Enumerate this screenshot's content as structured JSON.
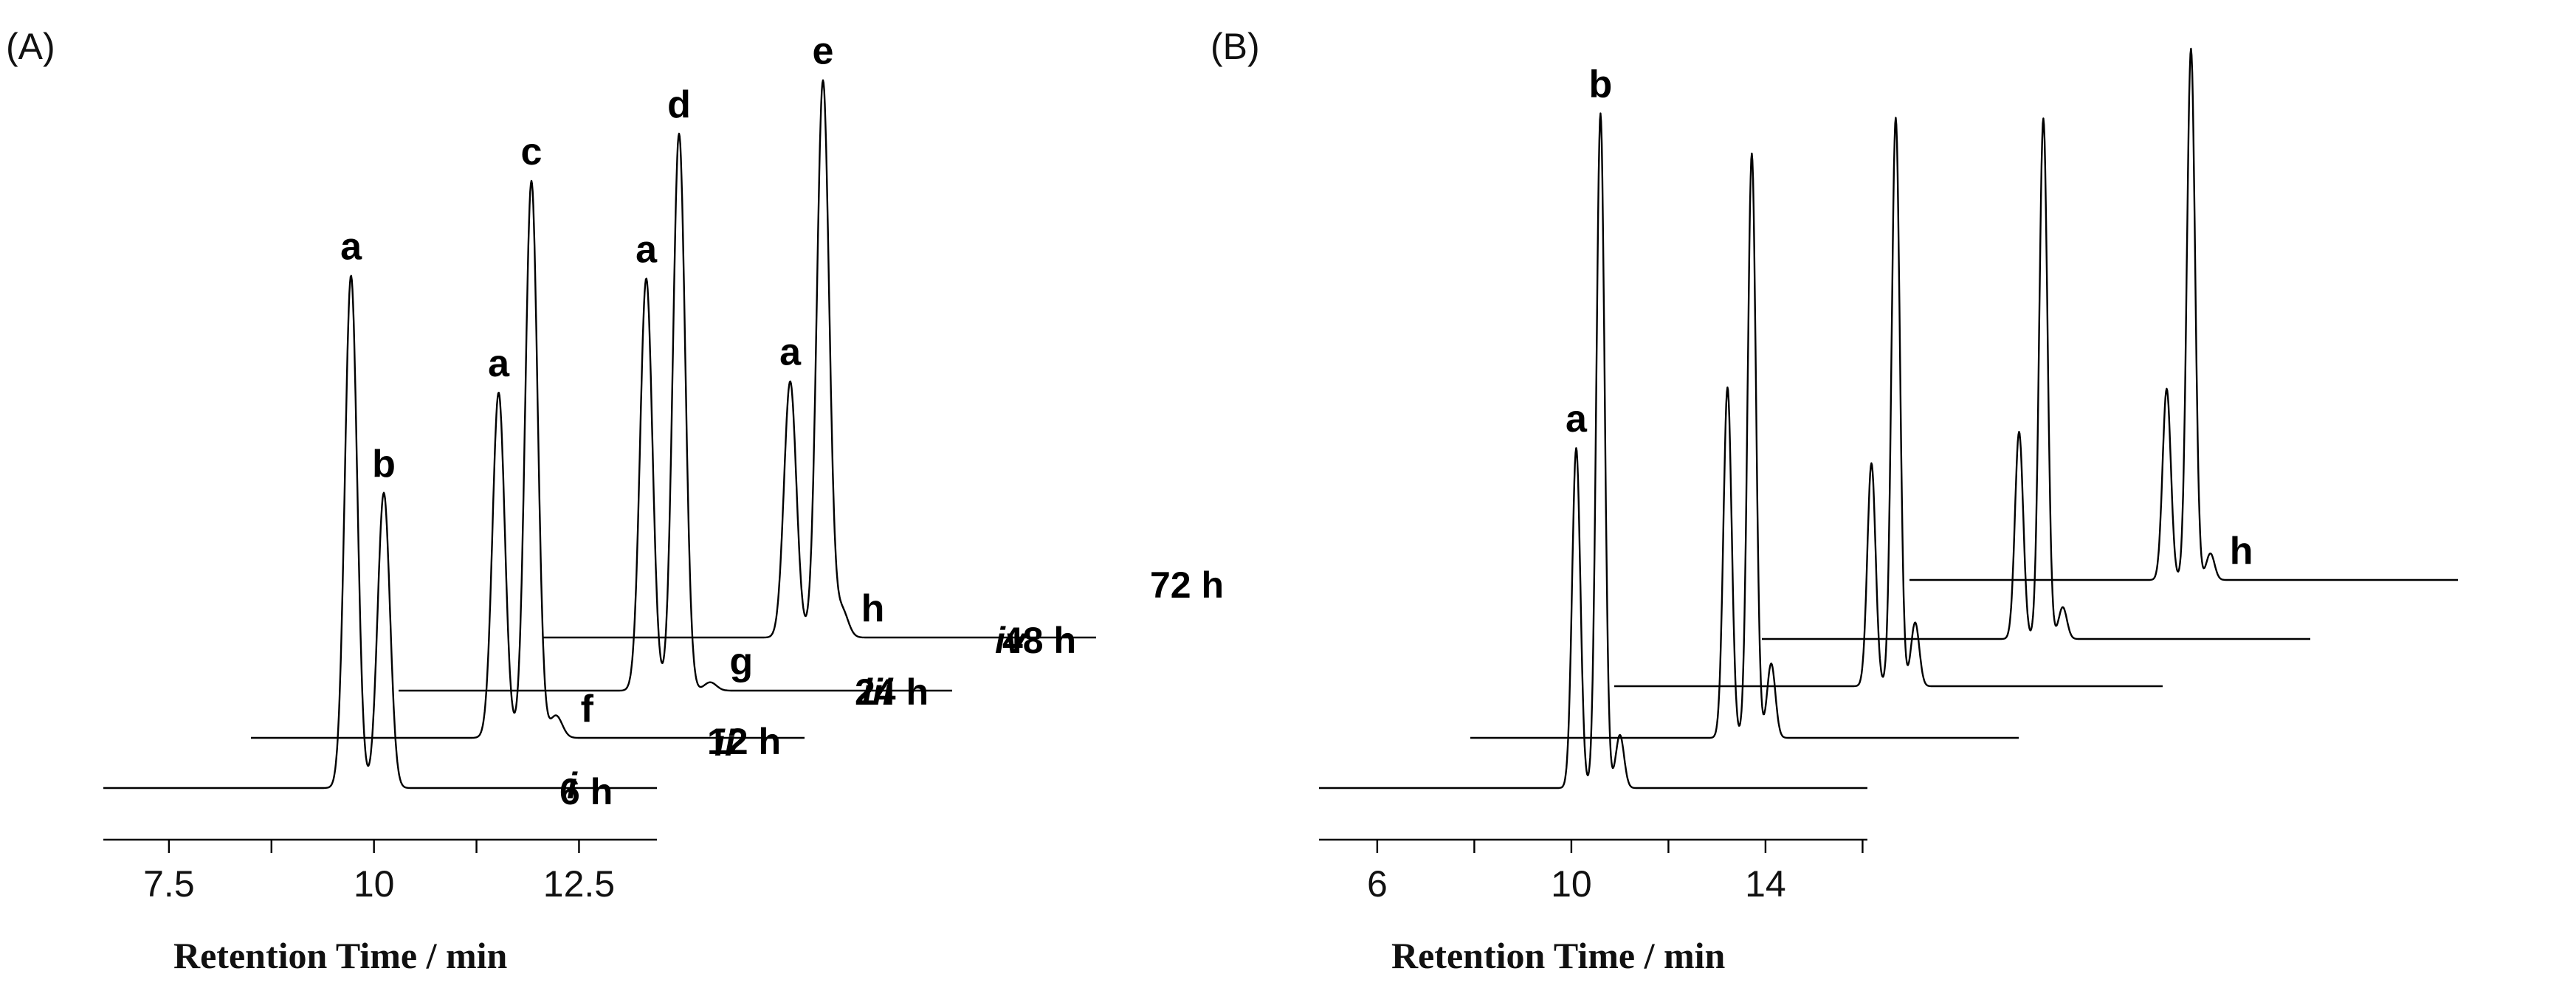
{
  "chart_data": [
    {
      "type": "line",
      "panel_label": "(A)",
      "xlabel": "Retention Time / min",
      "x_ticks": [
        "7.5",
        "10",
        "12.5"
      ],
      "tick_values": [
        7.5,
        10,
        12.5
      ],
      "x_range": [
        6.7,
        13.45
      ],
      "series": [
        {
          "name": "i",
          "x_range": [
            6.7,
            13.45
          ],
          "peaks": [
            {
              "label": "a",
              "x": 9.72,
              "height": 0.92
            },
            {
              "label": "b",
              "x": 10.12,
              "height": 0.53
            }
          ]
        },
        {
          "name": "ii",
          "x_range": [
            6.7,
            13.45
          ],
          "peaks": [
            {
              "label": "a",
              "x": 9.72,
              "height": 0.62
            },
            {
              "label": "c",
              "x": 10.12,
              "height": 1.0
            },
            {
              "label": "f",
              "x": 10.42,
              "height": 0.04
            }
          ]
        },
        {
          "name": "iii",
          "x_range": [
            6.7,
            13.45
          ],
          "peaks": [
            {
              "label": "a",
              "x": 9.72,
              "height": 0.74
            },
            {
              "label": "d",
              "x": 10.12,
              "height": 1.0
            },
            {
              "label": "g",
              "x": 10.5,
              "height": 0.015
            }
          ]
        },
        {
          "name": "iv",
          "x_range": [
            6.7,
            13.45
          ],
          "peaks": [
            {
              "label": "a",
              "x": 9.72,
              "height": 0.46
            },
            {
              "label": "e",
              "x": 10.12,
              "height": 1.0
            },
            {
              "label": "h",
              "x": 10.35,
              "height": 0.05
            }
          ]
        }
      ]
    },
    {
      "type": "line",
      "panel_label": "(B)",
      "xlabel": "Retention Time / min",
      "x_ticks": [
        "6",
        "10",
        "14"
      ],
      "tick_values": [
        6,
        10,
        14
      ],
      "x_range": [
        4.8,
        16.1
      ],
      "series": [
        {
          "name": "6 h",
          "x_range": [
            4.8,
            16.1
          ],
          "peaks": [
            {
              "label": "a",
              "x": 10.1,
              "height": 0.64
            },
            {
              "label": "b",
              "x": 10.6,
              "height": 1.27
            },
            {
              "label": "",
              "x": 11.0,
              "height": 0.1
            }
          ]
        },
        {
          "name": "12 h",
          "x_range": [
            4.8,
            16.1
          ],
          "peaks": [
            {
              "label": "",
              "x": 10.1,
              "height": 0.66
            },
            {
              "label": "",
              "x": 10.6,
              "height": 1.1
            },
            {
              "label": "",
              "x": 11.0,
              "height": 0.14
            }
          ]
        },
        {
          "name": "24 h",
          "x_range": [
            4.8,
            16.1
          ],
          "peaks": [
            {
              "label": "",
              "x": 10.1,
              "height": 0.42
            },
            {
              "label": "",
              "x": 10.6,
              "height": 1.07
            },
            {
              "label": "",
              "x": 11.0,
              "height": 0.12
            }
          ]
        },
        {
          "name": "48 h",
          "x_range": [
            4.8,
            16.1
          ],
          "peaks": [
            {
              "label": "",
              "x": 10.1,
              "height": 0.39
            },
            {
              "label": "",
              "x": 10.6,
              "height": 0.98
            },
            {
              "label": "",
              "x": 11.0,
              "height": 0.06
            }
          ]
        },
        {
          "name": "72 h",
          "x_range": [
            4.8,
            16.1
          ],
          "peaks": [
            {
              "label": "",
              "x": 10.1,
              "height": 0.36
            },
            {
              "label": "",
              "x": 10.6,
              "height": 1.0
            },
            {
              "label": "h",
              "x": 11.0,
              "height": 0.05
            }
          ]
        }
      ]
    }
  ]
}
